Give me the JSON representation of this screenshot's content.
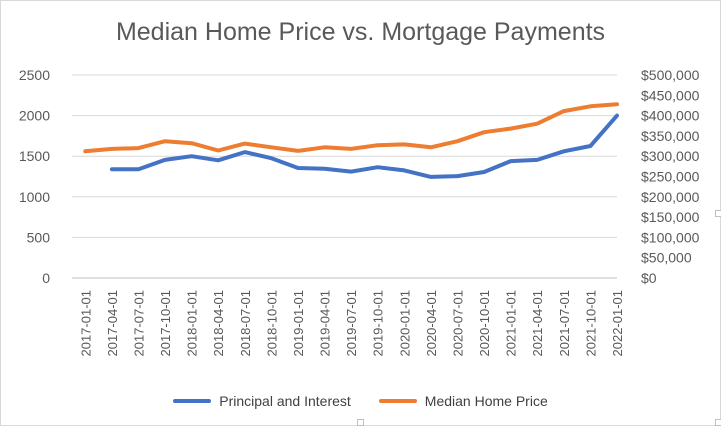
{
  "chart_data": {
    "type": "line",
    "title": "Median Home Price vs. Mortgage Payments",
    "x": [
      "2017-01-01",
      "2017-04-01",
      "2017-07-01",
      "2017-10-01",
      "2018-01-01",
      "2018-04-01",
      "2018-07-01",
      "2018-10-01",
      "2019-01-01",
      "2019-04-01",
      "2019-07-01",
      "2019-10-01",
      "2020-01-01",
      "2020-04-01",
      "2020-07-01",
      "2020-10-01",
      "2021-01-01",
      "2021-04-01",
      "2021-07-01",
      "2021-10-01",
      "2022-01-01"
    ],
    "y_left": {
      "ylim": [
        0,
        2500
      ],
      "ticks": [
        "0",
        "500",
        "1000",
        "1500",
        "2000",
        "2500"
      ],
      "tick_values": [
        0,
        500,
        1000,
        1500,
        2000,
        2500
      ]
    },
    "y_right": {
      "ylim": [
        0,
        500000
      ],
      "ticks": [
        "$0",
        "$50,000",
        "$100,000",
        "$150,000",
        "$200,000",
        "$250,000",
        "$300,000",
        "$350,000",
        "$400,000",
        "$450,000",
        "$500,000"
      ],
      "tick_values": [
        0,
        50000,
        100000,
        150000,
        200000,
        250000,
        300000,
        350000,
        400000,
        450000,
        500000
      ]
    },
    "series": [
      {
        "name": "Principal and Interest",
        "axis": "left",
        "color": "#4472c4",
        "values": [
          null,
          1340,
          1340,
          1455,
          1500,
          1450,
          1550,
          1475,
          1355,
          1345,
          1310,
          1365,
          1325,
          1245,
          1255,
          1305,
          1440,
          1455,
          1560,
          1625,
          2000
        ]
      },
      {
        "name": "Median Home Price",
        "axis": "right",
        "color": "#ed7d31",
        "values": [
          312000,
          318000,
          320000,
          337000,
          332000,
          314000,
          331000,
          322000,
          313000,
          322000,
          318000,
          327000,
          329000,
          322000,
          337000,
          359000,
          368000,
          380000,
          411000,
          423000,
          428000
        ]
      }
    ],
    "grid": true,
    "legend": "bottom"
  }
}
